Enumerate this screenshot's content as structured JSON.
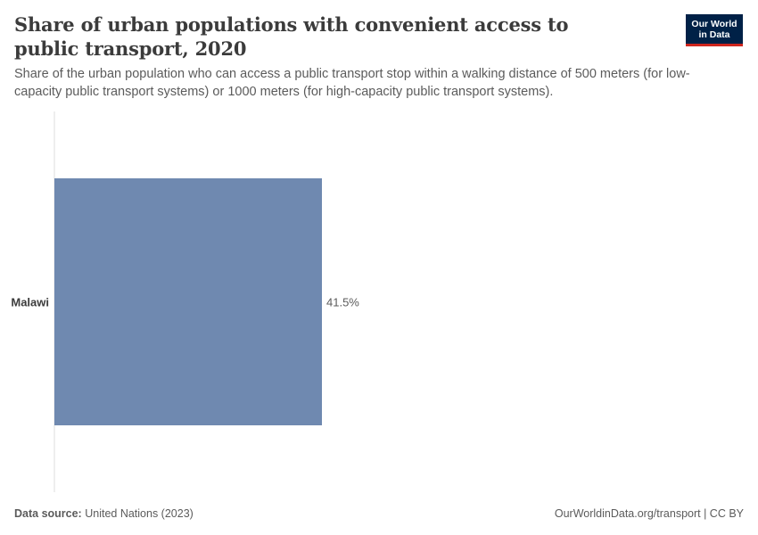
{
  "header": {
    "title": "Share of urban populations with convenient access to public transport, 2020",
    "subtitle": "Share of the urban population who can access a public transport stop within a walking distance of 500 meters (for low-capacity public transport systems) or 1000 meters (for high-capacity public transport systems).",
    "logo_line1": "Our World",
    "logo_line2": "in Data"
  },
  "footer": {
    "source_label": "Data source:",
    "source_value": "United Nations (2023)",
    "credit": "OurWorldinData.org/transport | CC BY"
  },
  "colors": {
    "bar": "#6f89b0",
    "axis": "#dddddd",
    "label": "#3b3b3b",
    "value_label": "#5b5b5b"
  },
  "chart_data": {
    "type": "bar",
    "orientation": "horizontal",
    "categories": [
      "Malawi"
    ],
    "values": [
      41.5
    ],
    "value_labels": [
      "41.5%"
    ],
    "unit": "%",
    "xlim": [
      0,
      100
    ],
    "grid": false
  }
}
